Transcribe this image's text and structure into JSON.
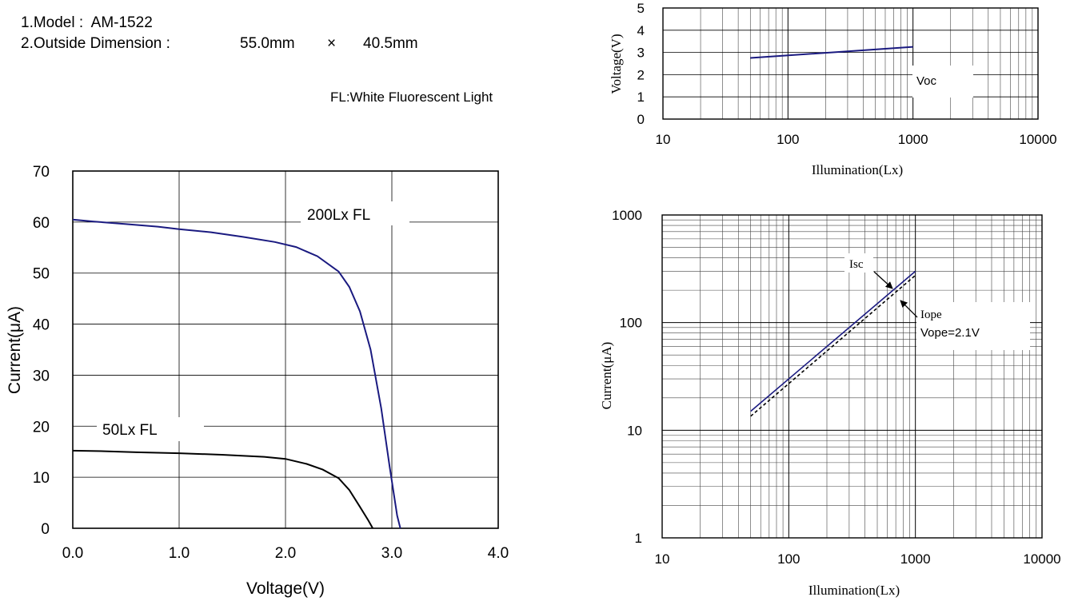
{
  "header": {
    "model": "1.Model :  AM-1522",
    "dimension_label": "2.Outside Dimension :",
    "width": "55.0mm",
    "times": "×",
    "height": "40.5mm",
    "note": "FL:White Fluorescent Light"
  },
  "colors": {
    "navy": "#1a1a80",
    "black": "#000000",
    "grid": "#555555"
  },
  "chart_data": [
    {
      "type": "line",
      "name": "iv-curve",
      "xlabel": "Voltage(V)",
      "ylabel": "Current(μA)",
      "xlim": [
        0,
        4
      ],
      "ylim": [
        0,
        70
      ],
      "xticks": [
        "0.0",
        "1.0",
        "2.0",
        "3.0",
        "4.0"
      ],
      "yticks": [
        "0",
        "10",
        "20",
        "30",
        "40",
        "50",
        "60",
        "70"
      ],
      "grid": true,
      "series": [
        {
          "name": "200Lx FL",
          "label": "200Lx FL",
          "color": "#1a1a80",
          "x": [
            0,
            0.2,
            0.5,
            0.8,
            1.0,
            1.3,
            1.6,
            1.9,
            2.1,
            2.3,
            2.5,
            2.6,
            2.7,
            2.8,
            2.9,
            2.98,
            3.05,
            3.08
          ],
          "y": [
            60.5,
            60.1,
            59.6,
            59.1,
            58.6,
            58.0,
            57.1,
            56.1,
            55.1,
            53.3,
            50.3,
            47.3,
            42.5,
            35.0,
            23.5,
            12.0,
            2.5,
            0
          ]
        },
        {
          "name": "50Lx FL",
          "label": "50Lx  FL",
          "color": "#000000",
          "x": [
            0,
            0.3,
            0.6,
            1.0,
            1.4,
            1.8,
            2.0,
            2.2,
            2.35,
            2.5,
            2.6,
            2.7,
            2.78,
            2.82
          ],
          "y": [
            15.2,
            15.1,
            14.9,
            14.7,
            14.4,
            14.0,
            13.6,
            12.6,
            11.5,
            9.8,
            7.5,
            4.2,
            1.5,
            0
          ]
        }
      ]
    },
    {
      "type": "line",
      "name": "voc-vs-illumination",
      "xlabel": "Illumination(Lx)",
      "ylabel": "Voltage(V)",
      "xscale": "log",
      "xlim": [
        10,
        10000
      ],
      "ylim": [
        0,
        5
      ],
      "xticks": [
        "10",
        "100",
        "1000",
        "10000"
      ],
      "yticks": [
        "0",
        "1",
        "2",
        "3",
        "4",
        "5"
      ],
      "grid": true,
      "series": [
        {
          "name": "Voc",
          "label": "Voc",
          "color": "#1a1a80",
          "x": [
            50,
            1000
          ],
          "y": [
            2.75,
            3.25
          ]
        }
      ]
    },
    {
      "type": "line",
      "name": "current-vs-illumination",
      "xlabel": "Illumination(Lx)",
      "ylabel": "Current(μA)",
      "xscale": "log",
      "yscale": "log",
      "xlim": [
        10,
        10000
      ],
      "ylim": [
        1,
        1000
      ],
      "xticks": [
        "10",
        "100",
        "1000",
        "10000"
      ],
      "yticks": [
        "1",
        "10",
        "100",
        "1000"
      ],
      "grid": true,
      "series": [
        {
          "name": "Isc",
          "label": "Isc",
          "color": "#1a1a80",
          "dash": false,
          "x": [
            50,
            1000
          ],
          "y": [
            15,
            300
          ]
        },
        {
          "name": "Iope",
          "label": "Iope",
          "sublabel": "Vope=2.1V",
          "color": "#000000",
          "dash": true,
          "x": [
            50,
            1000
          ],
          "y": [
            13.5,
            275
          ]
        }
      ]
    }
  ]
}
